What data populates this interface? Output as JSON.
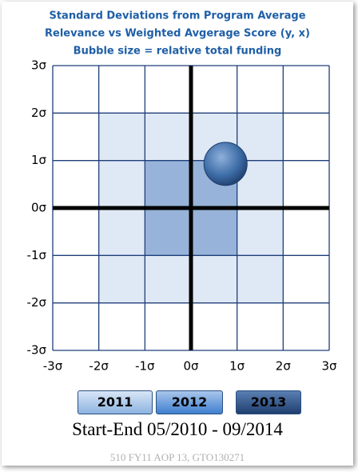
{
  "chart_data": {
    "type": "scatter",
    "title": [
      "Standard Deviations from Program Average",
      "Relevance vs Weighted Avgerage Score (y, x)",
      "Bubble size = relative total funding"
    ],
    "x": [
      0.75
    ],
    "values": [
      0.93
    ],
    "color": "#3f6ea8",
    "xlim": [
      -3,
      3
    ],
    "ylim": [
      -3,
      3
    ],
    "xticks": [
      {
        "value": -3,
        "label": "-3σ"
      },
      {
        "value": -2,
        "label": "-2σ"
      },
      {
        "value": -1,
        "label": "-1σ"
      },
      {
        "value": 0,
        "label": "0σ"
      },
      {
        "value": 1,
        "label": "1σ"
      },
      {
        "value": 2,
        "label": "2σ"
      },
      {
        "value": 3,
        "label": "3σ"
      }
    ],
    "yticks": [
      {
        "value": -3,
        "label": "-3σ"
      },
      {
        "value": -2,
        "label": "-2σ"
      },
      {
        "value": -1,
        "label": "-1σ"
      },
      {
        "value": 0,
        "label": "0σ"
      },
      {
        "value": 1,
        "label": "1σ"
      },
      {
        "value": 2,
        "label": "2σ"
      },
      {
        "value": 3,
        "label": "3σ"
      }
    ],
    "grid": true
  },
  "buttons": [
    "2011",
    "2012",
    "2013"
  ],
  "date_range": "Start-End  05/2010 - 09/2014",
  "footer": "510 FY11 AOP 13, GTO130271"
}
